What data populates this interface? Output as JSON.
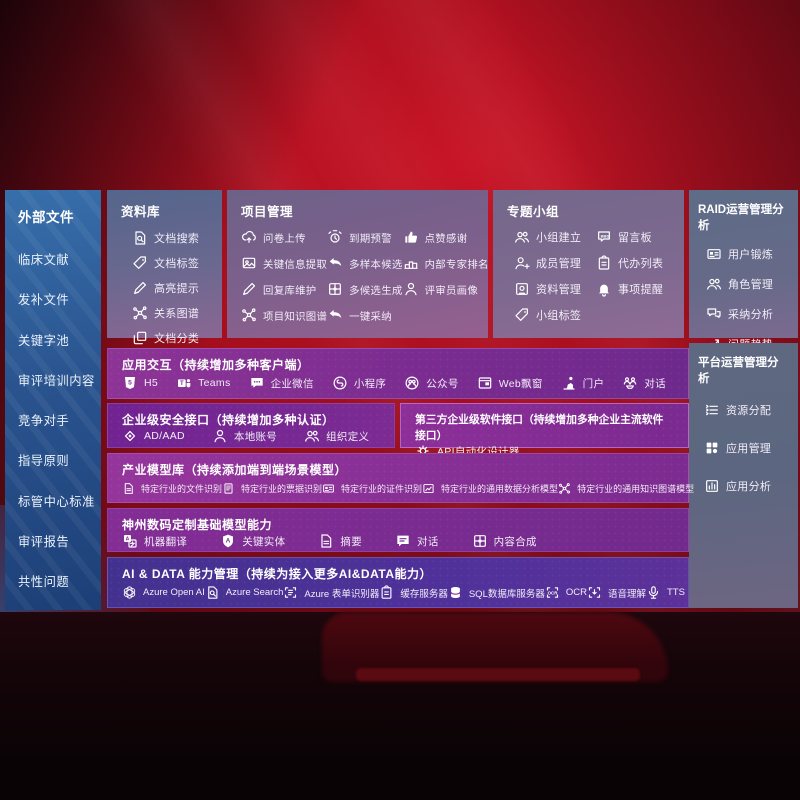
{
  "colors": {
    "background_red": "#a80f1e",
    "panel_blue": "#2a548f",
    "panel_gray_blue": "#5e6b87",
    "row_purple": "#7c2d90",
    "row_indigo": "#4a3194"
  },
  "sidebar": {
    "title": "外部文件",
    "items": [
      "临床文献",
      "发补文件",
      "关键字池",
      "审评培训内容",
      "竞争对手",
      "指导原则",
      "标管中心标准",
      "审评报告",
      "共性问题"
    ]
  },
  "boxes": {
    "library": {
      "title": "资料库",
      "items": [
        {
          "icon": "doc-search-icon",
          "label": "文档搜索"
        },
        {
          "icon": "tag-icon",
          "label": "文档标签"
        },
        {
          "icon": "pen-icon",
          "label": "高亮提示"
        },
        {
          "icon": "graph-icon",
          "label": "关系图谱"
        },
        {
          "icon": "copy-icon",
          "label": "文档分类"
        }
      ]
    },
    "project": {
      "title": "项目管理",
      "items": [
        {
          "icon": "cloud-upload-icon",
          "label": "问卷上传"
        },
        {
          "icon": "image-icon",
          "label": "关键信息提取"
        },
        {
          "icon": "pen-icon",
          "label": "回复库维护"
        },
        {
          "icon": "graph-icon",
          "label": "项目知识图谱"
        },
        {
          "icon": "alarm-icon",
          "label": "到期预警"
        },
        {
          "icon": "reply-icon",
          "label": "多样本候选"
        },
        {
          "icon": "compose-icon",
          "label": "多候选生成"
        },
        {
          "icon": "reply-icon",
          "label": "一键采纳"
        },
        {
          "icon": "thumbs-up-icon",
          "label": "点赞感谢"
        },
        {
          "icon": "rank-icon",
          "label": "内部专家排名"
        },
        {
          "icon": "person-icon",
          "label": "评审员画像"
        }
      ]
    },
    "groups": {
      "title": "专题小组",
      "items": [
        {
          "icon": "users-icon",
          "label": "小组建立"
        },
        {
          "icon": "person-add-icon",
          "label": "成员管理"
        },
        {
          "icon": "album-icon",
          "label": "资料管理"
        },
        {
          "icon": "tag-icon",
          "label": "小组标签"
        },
        {
          "icon": "bbs-icon",
          "label": "留言板"
        },
        {
          "icon": "clipboard-icon",
          "label": "代办列表"
        },
        {
          "icon": "bell-icon",
          "label": "事项提醒"
        }
      ]
    },
    "raid": {
      "title": "RAID运营管理分析",
      "items": [
        {
          "icon": "idcard-icon",
          "label": "用户锻炼"
        },
        {
          "icon": "users-icon",
          "label": "角色管理"
        },
        {
          "icon": "chat-qa-icon",
          "label": "采纳分析"
        },
        {
          "icon": "trend-icon",
          "label": "问题趋势"
        }
      ]
    },
    "platform": {
      "title": "平台运营管理分析",
      "items": [
        {
          "icon": "list-icon",
          "label": "资源分配"
        },
        {
          "icon": "apps-icon",
          "label": "应用管理"
        },
        {
          "icon": "report-icon",
          "label": "应用分析"
        }
      ]
    }
  },
  "rows": {
    "interaction": {
      "title": "应用交互（持续增加多种客户端）",
      "items": [
        {
          "icon": "h5-icon",
          "label": "H5"
        },
        {
          "icon": "teams-icon",
          "label": "Teams"
        },
        {
          "icon": "wechat-icon",
          "label": "企业微信"
        },
        {
          "icon": "miniprogram-icon",
          "label": "小程序"
        },
        {
          "icon": "official-icon",
          "label": "公众号"
        },
        {
          "icon": "window-icon",
          "label": "Web飘窗"
        },
        {
          "icon": "portal-icon",
          "label": "门户"
        },
        {
          "icon": "dialog-icon",
          "label": "对话"
        }
      ]
    },
    "security": {
      "title": "企业级安全接口（持续增加多种认证）",
      "items": [
        {
          "icon": "diamond-icon",
          "label": "AD/AAD"
        },
        {
          "icon": "person-icon",
          "label": "本地账号"
        },
        {
          "icon": "users-icon",
          "label": "组织定义"
        }
      ]
    },
    "thirdparty": {
      "title": "第三方企业级软件接口（持续增加多种企业主流软件接口）",
      "items": [
        {
          "icon": "gear-icon",
          "label": "API自动化设计器"
        }
      ]
    },
    "models": {
      "title": "产业模型库（持续添加端到端场景模型）",
      "items": [
        {
          "icon": "doc-icon",
          "label": "特定行业的文件识别"
        },
        {
          "icon": "receipt-icon",
          "label": "特定行业的票据识别"
        },
        {
          "icon": "idcard-icon",
          "label": "特定行业的证件识别"
        },
        {
          "icon": "image-chart-icon",
          "label": "特定行业的通用数据分析模型"
        },
        {
          "icon": "graph-icon",
          "label": "特定行业的通用知识图谱模型"
        }
      ]
    },
    "base_models": {
      "title": "神州数码定制基础模型能力",
      "items": [
        {
          "icon": "translate-icon",
          "label": "机器翻译"
        },
        {
          "icon": "shield-icon",
          "label": "关键实体"
        },
        {
          "icon": "doc-icon",
          "label": "摘要"
        },
        {
          "icon": "chat-icon",
          "label": "对话"
        },
        {
          "icon": "compose-icon",
          "label": "内容合成"
        }
      ]
    },
    "ai_data": {
      "title": "AI & DATA 能力管理（持续为接入更多AI&DATA能力）",
      "items": [
        {
          "icon": "openai-icon",
          "label": "Azure Open AI"
        },
        {
          "icon": "doc-search-icon",
          "label": "Azure Search"
        },
        {
          "icon": "scan-icon",
          "label": "Azure 表单识别器"
        },
        {
          "icon": "clipboard-icon",
          "label": "缓存服务器"
        },
        {
          "icon": "database-icon",
          "label": "SQL数据库服务器"
        },
        {
          "icon": "ocr-icon",
          "label": "OCR"
        },
        {
          "icon": "voice-icon",
          "label": "语音理解"
        },
        {
          "icon": "mic-icon",
          "label": "TTS"
        }
      ]
    }
  }
}
